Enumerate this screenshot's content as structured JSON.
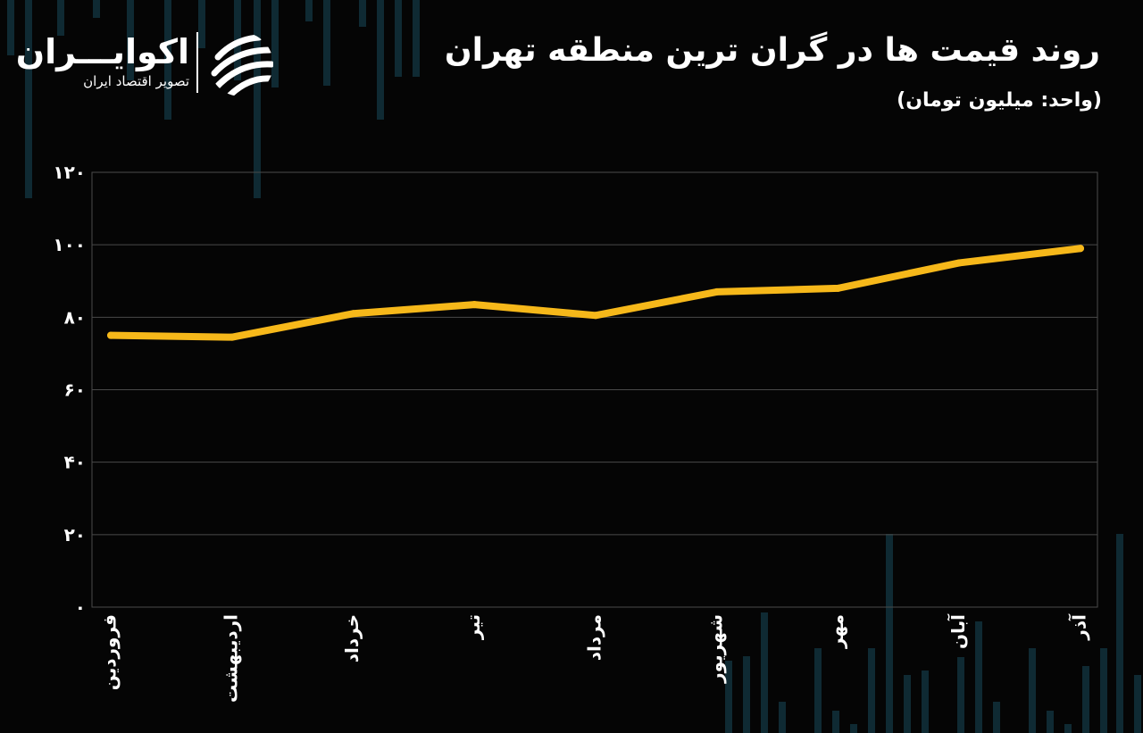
{
  "header": {
    "title": "روند قیمت ها در گران ترین منطقه تهران",
    "unit": "(واحد: میلیون تومان)"
  },
  "brand": {
    "name": "اکوایـــران",
    "tagline": "تصویر اقتصاد ایران",
    "logo_icon": "ecoiran-stripes-logo-icon"
  },
  "colors": {
    "background": "#050505",
    "line": "#f6b81a",
    "grid": "#4a4a4a",
    "text": "#ffffff",
    "decor_bars": "#0f2a33"
  },
  "chart_data": {
    "type": "line",
    "title": "روند قیمت ها در گران ترین منطقه تهران",
    "ylabel": "(واحد: میلیون تومان)",
    "xlabel": "",
    "categories": [
      "فروردین",
      "اردیبهشت",
      "خرداد",
      "تیر",
      "مرداد",
      "شهریور",
      "مهر",
      "آبان",
      "آذر"
    ],
    "series": [
      {
        "values": [
          75,
          74.5,
          81,
          83.5,
          80.5,
          87,
          88,
          95,
          99
        ]
      }
    ],
    "ylim": [
      0,
      120
    ],
    "yticks": [
      0,
      20,
      40,
      60,
      80,
      100,
      120
    ],
    "ytick_labels": [
      "۰",
      "۲۰",
      "۴۰",
      "۶۰",
      "۸۰",
      "۱۰۰",
      "۱۲۰"
    ],
    "grid": true,
    "legend": "none"
  }
}
